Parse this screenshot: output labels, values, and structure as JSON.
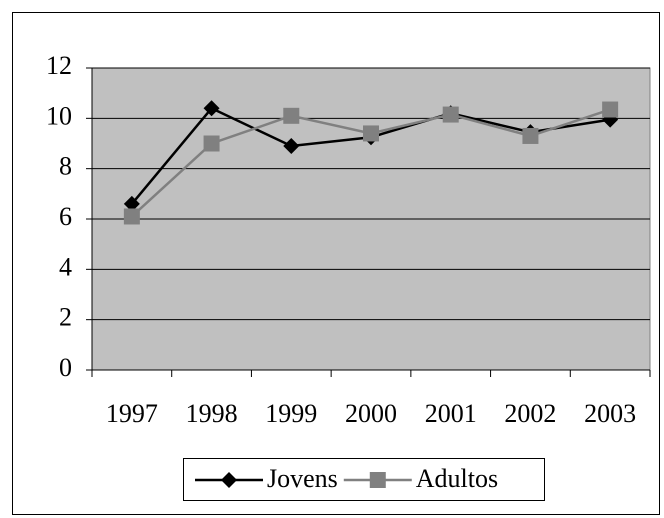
{
  "chart_data": {
    "type": "line",
    "categories": [
      "1997",
      "1998",
      "1999",
      "2000",
      "2001",
      "2002",
      "2003"
    ],
    "series": [
      {
        "name": "Jovens",
        "color": "#000000",
        "marker": "diamond",
        "values": [
          6.6,
          10.4,
          8.9,
          9.25,
          10.2,
          9.45,
          9.95
        ]
      },
      {
        "name": "Adultos",
        "color": "#808080",
        "marker": "square",
        "values": [
          6.1,
          9.0,
          10.1,
          9.4,
          10.15,
          9.3,
          10.35
        ]
      }
    ],
    "ylim": [
      0,
      12
    ],
    "yticks": [
      0,
      2,
      4,
      6,
      8,
      10,
      12
    ],
    "grid": true,
    "legend": "bottom"
  }
}
